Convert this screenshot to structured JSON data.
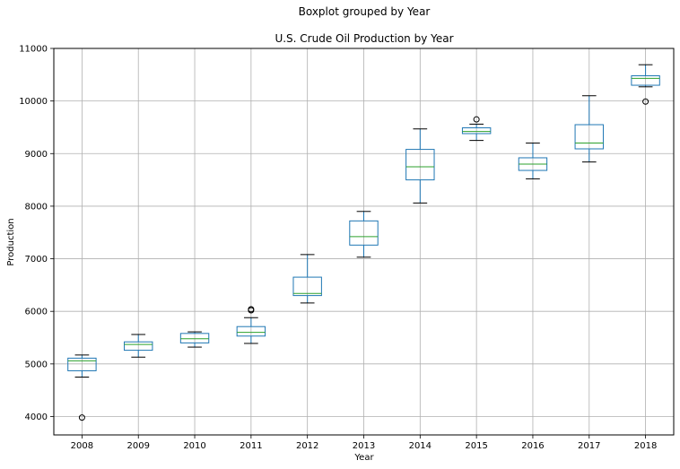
{
  "chart_data": {
    "type": "boxplot",
    "suptitle": "Boxplot grouped by Year",
    "title": "U.S. Crude Oil Production by Year",
    "xlabel": "Year",
    "ylabel": "Production",
    "ylim": [
      3650,
      11000
    ],
    "yticks": [
      4000,
      5000,
      6000,
      7000,
      8000,
      9000,
      10000,
      11000
    ],
    "grid": true,
    "colors": {
      "box": "#1f77b4",
      "median": "#2ca02c",
      "whisker": "#000000",
      "grid": "#b0b0b0"
    },
    "categories": [
      "2008",
      "2009",
      "2010",
      "2011",
      "2012",
      "2013",
      "2014",
      "2015",
      "2016",
      "2017",
      "2018"
    ],
    "boxes": [
      {
        "year": "2008",
        "whislo": 4750,
        "q1": 4870,
        "med": 5060,
        "q3": 5110,
        "whishi": 5170,
        "fliers": [
          3980
        ]
      },
      {
        "year": "2009",
        "whislo": 5130,
        "q1": 5260,
        "med": 5370,
        "q3": 5420,
        "whishi": 5560,
        "fliers": []
      },
      {
        "year": "2010",
        "whislo": 5320,
        "q1": 5400,
        "med": 5480,
        "q3": 5580,
        "whishi": 5610,
        "fliers": []
      },
      {
        "year": "2011",
        "whislo": 5390,
        "q1": 5530,
        "med": 5600,
        "q3": 5710,
        "whishi": 5880,
        "fliers": [
          6020,
          6040
        ]
      },
      {
        "year": "2012",
        "whislo": 6160,
        "q1": 6300,
        "med": 6340,
        "q3": 6650,
        "whishi": 7080,
        "fliers": []
      },
      {
        "year": "2013",
        "whislo": 7030,
        "q1": 7260,
        "med": 7420,
        "q3": 7720,
        "whishi": 7900,
        "fliers": []
      },
      {
        "year": "2014",
        "whislo": 8060,
        "q1": 8500,
        "med": 8750,
        "q3": 9080,
        "whishi": 9470,
        "fliers": []
      },
      {
        "year": "2015",
        "whislo": 9250,
        "q1": 9380,
        "med": 9420,
        "q3": 9490,
        "whishi": 9560,
        "fliers": [
          9650
        ]
      },
      {
        "year": "2016",
        "whislo": 8520,
        "q1": 8680,
        "med": 8800,
        "q3": 8920,
        "whishi": 9200,
        "fliers": []
      },
      {
        "year": "2017",
        "whislo": 8840,
        "q1": 9090,
        "med": 9200,
        "q3": 9550,
        "whishi": 10100,
        "fliers": []
      },
      {
        "year": "2018",
        "whislo": 10270,
        "q1": 10300,
        "med": 10430,
        "q3": 10480,
        "whishi": 10690,
        "fliers": [
          9990
        ]
      }
    ]
  }
}
